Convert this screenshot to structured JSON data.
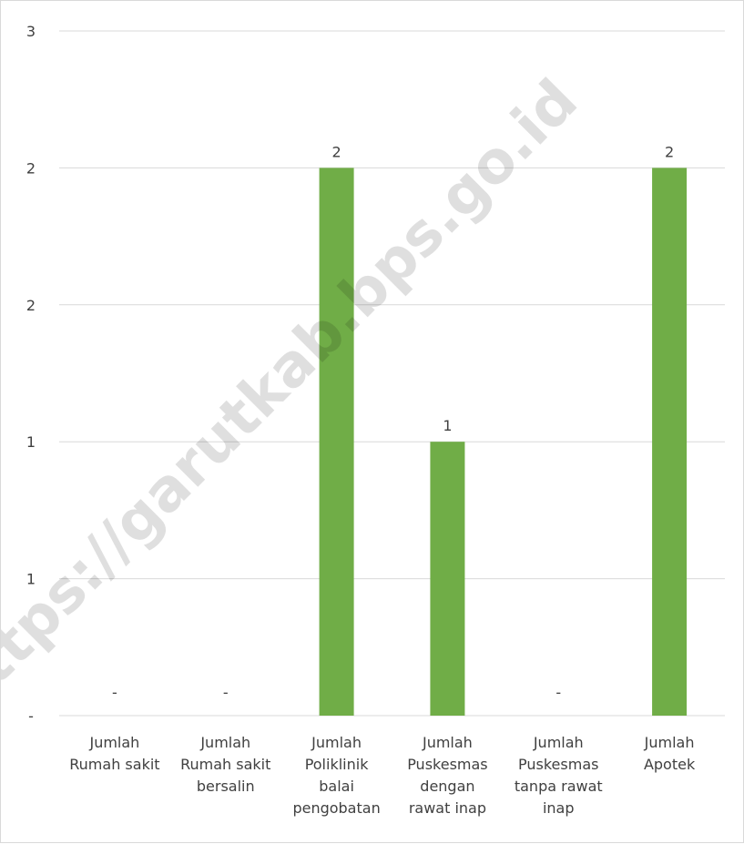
{
  "chart_data": {
    "type": "bar",
    "categories": [
      [
        "Jumlah",
        "Rumah sakit"
      ],
      [
        "Jumlah",
        "Rumah sakit",
        "bersalin"
      ],
      [
        "Jumlah",
        "Poliklinik",
        "balai",
        "pengobatan"
      ],
      [
        "Jumlah",
        "Puskesmas",
        "dengan",
        "rawat inap"
      ],
      [
        "Jumlah",
        "Puskesmas",
        "tanpa rawat",
        "inap"
      ],
      [
        "Jumlah",
        "Apotek"
      ]
    ],
    "values": [
      0,
      0,
      2,
      1,
      0,
      2
    ],
    "data_labels": [
      "-",
      "-",
      "2",
      "1",
      "-",
      "2"
    ],
    "y_tick_labels": [
      "-",
      "1",
      "1",
      "2",
      "2",
      "3"
    ],
    "ylim": [
      0,
      2.5
    ],
    "grid": true,
    "bar_color": "#70ad47",
    "title": "",
    "xlabel": "",
    "ylabel": ""
  },
  "watermark": "https://garutkab.bps.go.id"
}
